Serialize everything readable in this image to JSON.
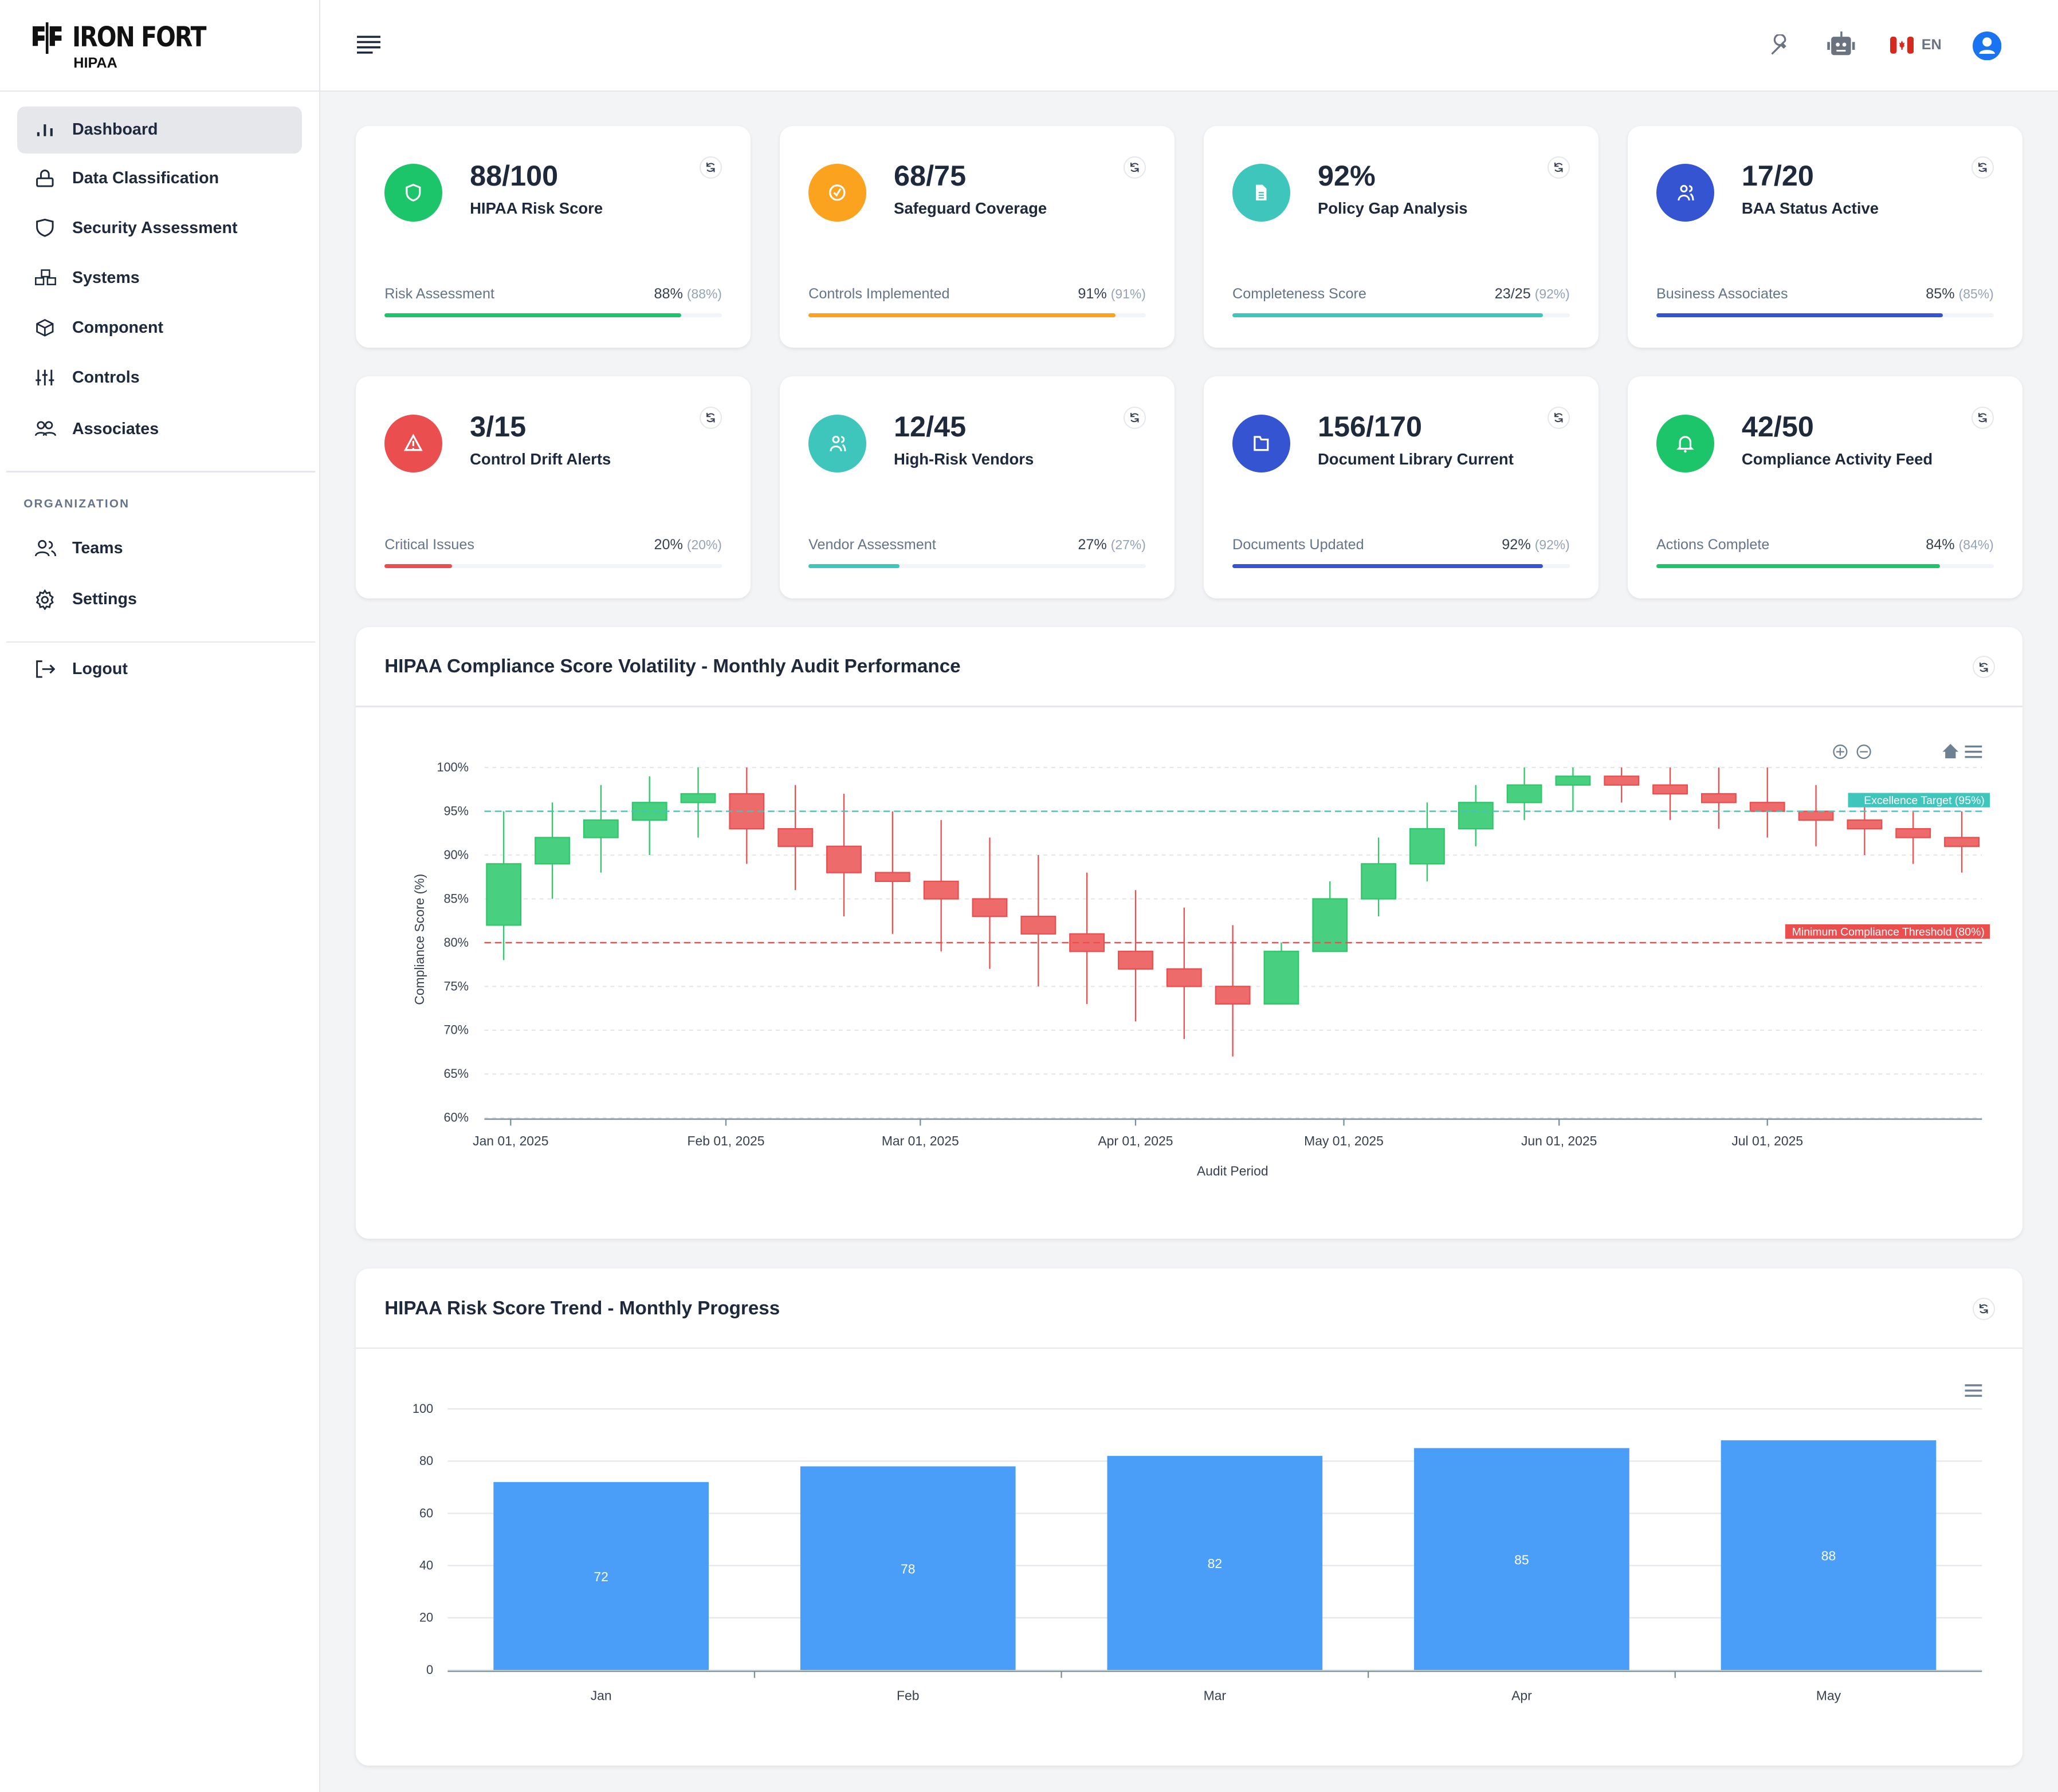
{
  "brand": {
    "name": "IRON FORT",
    "sub": "HIPAA"
  },
  "sidebar": {
    "items": [
      {
        "label": "Dashboard"
      },
      {
        "label": "Data Classification"
      },
      {
        "label": "Security Assessment"
      },
      {
        "label": "Systems"
      },
      {
        "label": "Component"
      },
      {
        "label": "Controls"
      },
      {
        "label": "Associates"
      }
    ],
    "section": "ORGANIZATION",
    "org_items": [
      {
        "label": "Teams"
      },
      {
        "label": "Settings"
      }
    ],
    "logout": "Logout"
  },
  "header": {
    "language": "EN"
  },
  "cards": [
    {
      "value": "88/100",
      "label": "HIPAA Risk Score",
      "footer": "Risk Assessment",
      "footer_value": "88%",
      "footer_pct": "(88%)",
      "progress": 88,
      "color": "#1cc46a",
      "icon": "shield"
    },
    {
      "value": "68/75",
      "label": "Safeguard Coverage",
      "footer": "Controls Implemented",
      "footer_value": "91%",
      "footer_pct": "(91%)",
      "progress": 91,
      "color": "#fba21e",
      "icon": "check-circle"
    },
    {
      "value": "92%",
      "label": "Policy Gap Analysis",
      "footer": "Completeness Score",
      "footer_value": "23/25",
      "footer_pct": "(92%)",
      "progress": 92,
      "color": "#3ec6bd",
      "icon": "document"
    },
    {
      "value": "17/20",
      "label": "BAA Status Active",
      "footer": "Business Associates",
      "footer_value": "85%",
      "footer_pct": "(85%)",
      "progress": 85,
      "color": "#3454d1",
      "icon": "users"
    },
    {
      "value": "3/15",
      "label": "Control Drift Alerts",
      "footer": "Critical Issues",
      "footer_value": "20%",
      "footer_pct": "(20%)",
      "progress": 20,
      "color": "#ea4e4e",
      "icon": "warning"
    },
    {
      "value": "12/45",
      "label": "High-Risk Vendors",
      "footer": "Vendor Assessment",
      "footer_value": "27%",
      "footer_pct": "(27%)",
      "progress": 27,
      "color": "#3ec6bd",
      "icon": "users"
    },
    {
      "value": "156/170",
      "label": "Document Library Current",
      "footer": "Documents Updated",
      "footer_value": "92%",
      "footer_pct": "(92%)",
      "progress": 92,
      "color": "#3454d1",
      "icon": "folder"
    },
    {
      "value": "42/50",
      "label": "Compliance Activity Feed",
      "footer": "Actions Complete",
      "footer_value": "84%",
      "footer_pct": "(84%)",
      "progress": 84,
      "color": "#1cc46a",
      "icon": "bell"
    }
  ],
  "chart_data": [
    {
      "type": "candlestick",
      "title": "HIPAA Compliance Score Volatility - Monthly Audit Performance",
      "xlabel": "Audit Period",
      "ylabel": "Compliance Score (%)",
      "ylim": [
        60,
        100
      ],
      "yticks": [
        "60%",
        "65%",
        "70%",
        "75%",
        "80%",
        "85%",
        "90%",
        "95%",
        "100%"
      ],
      "xticks": [
        {
          "label": "Jan 01, 2025",
          "date": "2025-01-01"
        },
        {
          "label": "Feb 01, 2025",
          "date": "2025-02-01"
        },
        {
          "label": "Mar 01, 2025",
          "date": "2025-03-01"
        },
        {
          "label": "Apr 01, 2025",
          "date": "2025-04-01"
        },
        {
          "label": "May 01, 2025",
          "date": "2025-05-01"
        },
        {
          "label": "Jun 01, 2025",
          "date": "2025-06-01"
        },
        {
          "label": "Jul 01, 2025",
          "date": "2025-07-01"
        }
      ],
      "annotations": [
        {
          "label": "Excellence Target (95%)",
          "y": 95,
          "color": "#3ec6bd"
        },
        {
          "label": "Minimum Compliance Threshold (80%)",
          "y": 80,
          "color": "#ea4e4e"
        }
      ],
      "first_date": "2024-12-31",
      "interval_days": 7,
      "ohlc": [
        [
          82,
          95,
          78,
          89
        ],
        [
          89,
          96,
          85,
          92
        ],
        [
          92,
          98,
          88,
          94
        ],
        [
          94,
          99,
          90,
          96
        ],
        [
          96,
          100,
          92,
          97
        ],
        [
          97,
          100,
          89,
          93
        ],
        [
          93,
          98,
          86,
          91
        ],
        [
          91,
          97,
          83,
          88
        ],
        [
          88,
          95,
          81,
          87
        ],
        [
          87,
          94,
          79,
          85
        ],
        [
          85,
          92,
          77,
          83
        ],
        [
          83,
          90,
          75,
          81
        ],
        [
          81,
          88,
          73,
          79
        ],
        [
          79,
          86,
          71,
          77
        ],
        [
          77,
          84,
          69,
          75
        ],
        [
          75,
          82,
          67,
          73
        ],
        [
          73,
          80,
          73,
          79
        ],
        [
          79,
          87,
          79,
          85
        ],
        [
          85,
          92,
          83,
          89
        ],
        [
          89,
          96,
          87,
          93
        ],
        [
          93,
          98,
          91,
          96
        ],
        [
          96,
          100,
          94,
          98
        ],
        [
          98,
          100,
          95,
          99
        ],
        [
          99,
          100,
          96,
          98
        ],
        [
          98,
          100,
          94,
          97
        ],
        [
          97,
          100,
          93,
          96
        ],
        [
          96,
          100,
          92,
          95
        ],
        [
          95,
          98,
          91,
          94
        ],
        [
          94,
          97,
          90,
          93
        ],
        [
          93,
          95,
          89,
          92
        ],
        [
          92,
          95,
          88,
          91
        ]
      ]
    },
    {
      "type": "bar",
      "title": "HIPAA Risk Score Trend - Monthly Progress",
      "categories": [
        "Jan",
        "Feb",
        "Mar",
        "Apr",
        "May"
      ],
      "values": [
        72,
        78,
        82,
        85,
        88
      ],
      "ylim": [
        0,
        100
      ],
      "yticks": [
        "0",
        "20",
        "40",
        "60",
        "80",
        "100"
      ],
      "color": "#4a9ef8"
    }
  ]
}
